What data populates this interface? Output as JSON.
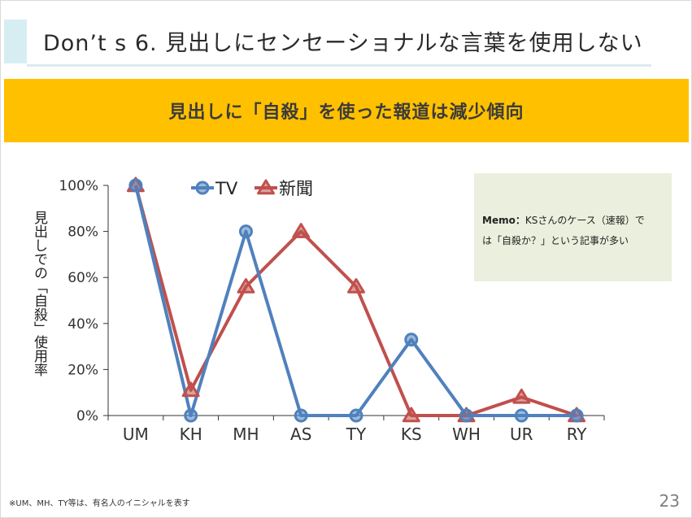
{
  "slide": {
    "title": "Don’t s  6.  見出しにセンセーショナルな言葉を使用しない",
    "banner": "見出しに「自殺」を使った報道は減少傾向",
    "memo_label": "Memo：",
    "memo_text_1": "KSさんのケース（速報）で",
    "memo_text_2": "は「自殺か？」という記事が多い",
    "footnote": "※UM、MH、TY等は、有名人のイニシャルを表す",
    "page_number": "23"
  },
  "colors": {
    "tv": "#4f81bd",
    "newspaper": "#c0504d",
    "banner": "#ffc000",
    "memo_bg": "#eaf0dd"
  },
  "chart_data": {
    "type": "line",
    "categories": [
      "UM",
      "KH",
      "MH",
      "AS",
      "TY",
      "KS",
      "WH",
      "UR",
      "RY"
    ],
    "ylabel": "見出しでの「自殺」使用率",
    "xlabel": "",
    "ylim": [
      0,
      100
    ],
    "yticks": [
      "0%",
      "20%",
      "40%",
      "60%",
      "80%",
      "100%"
    ],
    "ytick_values": [
      0,
      20,
      40,
      60,
      80,
      100
    ],
    "legend_position": "top-center",
    "grid": false,
    "series": [
      {
        "name": "TV",
        "marker": "circle",
        "values": [
          100,
          0,
          80,
          0,
          0,
          33,
          0,
          0,
          0
        ]
      },
      {
        "name": "新聞",
        "marker": "triangle",
        "values": [
          100,
          11,
          56,
          80,
          56,
          0,
          0,
          8,
          0
        ]
      }
    ]
  }
}
